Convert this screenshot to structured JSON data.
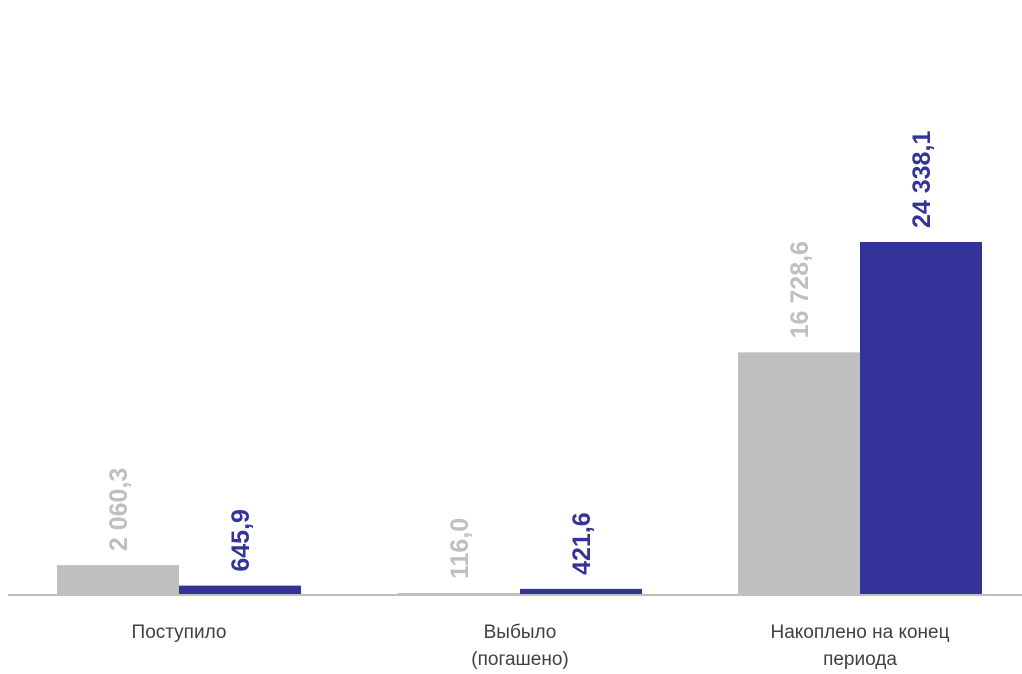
{
  "chart_data": {
    "type": "bar",
    "categories": [
      [
        "Поступило"
      ],
      [
        "Выбыло",
        "(погашено)"
      ],
      [
        "Накоплено на конец",
        "периода"
      ]
    ],
    "series": [
      {
        "values": [
          2060.3,
          116.0,
          16728.6
        ],
        "labels": [
          "2 060,3",
          "116,0",
          "16 728,6"
        ],
        "color": "#bfbfbf"
      },
      {
        "values": [
          645.9,
          421.6,
          24338.1
        ],
        "labels": [
          "645,9",
          "421,6",
          "24 338,1"
        ],
        "color": "#333399"
      }
    ],
    "ylim": [
      0,
      24338.1
    ],
    "grid": false,
    "legend": "none",
    "colors": {
      "axis": "#bfbfbf",
      "category_text": "#404040"
    }
  }
}
